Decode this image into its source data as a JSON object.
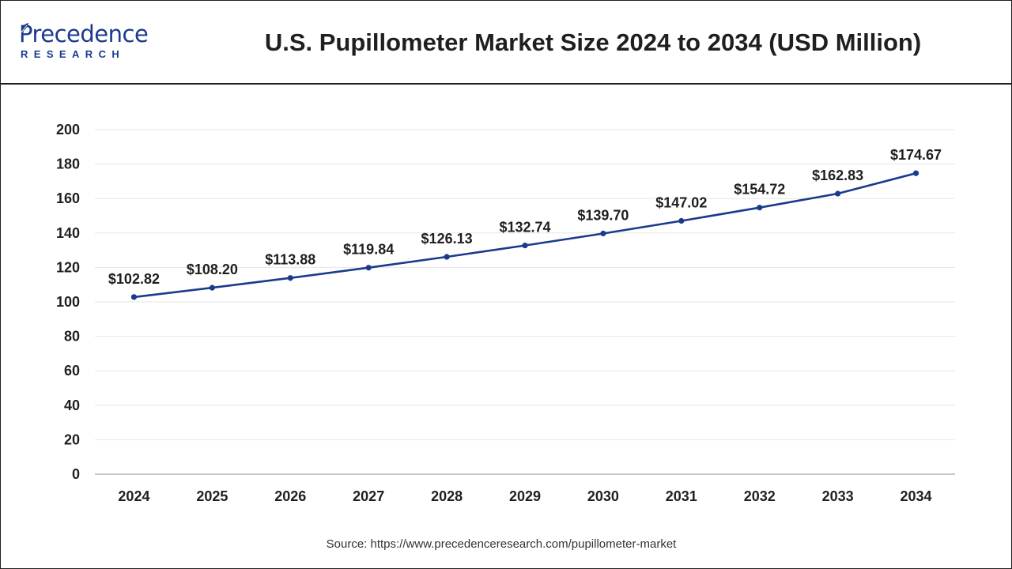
{
  "brand": {
    "logo_main": "Precedence",
    "logo_sub": "RESEARCH"
  },
  "header": {
    "title": "U.S. Pupillometer Market Size 2024 to 2034 (USD Million)"
  },
  "footer": {
    "source": "Source: https://www.precedenceresearch.com/pupillometer-market"
  },
  "colors": {
    "line": "#1b3a8c",
    "grid": "#e6e6e6",
    "axis": "#b5b5b5",
    "brand": "#1b3a8c"
  },
  "chart_data": {
    "type": "line",
    "title": "U.S. Pupillometer Market Size 2024 to 2034 (USD Million)",
    "xlabel": "",
    "ylabel": "",
    "categories": [
      "2024",
      "2025",
      "2026",
      "2027",
      "2028",
      "2029",
      "2030",
      "2031",
      "2032",
      "2033",
      "2034"
    ],
    "series": [
      {
        "values": [
          102.82,
          108.2,
          113.88,
          119.84,
          126.13,
          132.74,
          139.7,
          147.02,
          154.72,
          162.83,
          174.67
        ],
        "labels": [
          "$102.82",
          "$108.20",
          "$113.88",
          "$119.84",
          "$126.13",
          "$132.74",
          "$139.70",
          "$147.02",
          "$154.72",
          "$162.83",
          "$174.67"
        ]
      }
    ],
    "ylim": [
      0,
      200
    ],
    "yticks": [
      0,
      20,
      40,
      60,
      80,
      100,
      120,
      140,
      160,
      180,
      200
    ],
    "grid": true,
    "legend": "none"
  }
}
